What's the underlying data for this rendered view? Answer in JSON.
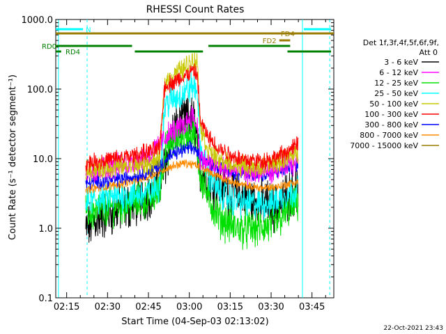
{
  "chart_data": {
    "type": "line",
    "title": "RHESSI Count Rates",
    "xlabel": "Start Time (04-Sep-03 02:13:02)",
    "ylabel": "Count Rate (s⁻¹ detector segment⁻¹)",
    "yscale": "log",
    "ylim": [
      0.1,
      1000
    ],
    "xlim_minutes": [
      -2,
      100
    ],
    "x_ticks": [
      {
        "label": "02:15",
        "minute": 2
      },
      {
        "label": "02:30",
        "minute": 17
      },
      {
        "label": "02:45",
        "minute": 32
      },
      {
        "label": "03:00",
        "minute": 47
      },
      {
        "label": "03:15",
        "minute": 62
      },
      {
        "label": "03:30",
        "minute": 77
      },
      {
        "label": "03:45",
        "minute": 92
      }
    ],
    "y_ticks": [
      {
        "label": "0.1",
        "value": 0.1
      },
      {
        "label": "1.0",
        "value": 1
      },
      {
        "label": "10.0",
        "value": 10
      },
      {
        "label": "100.0",
        "value": 100
      },
      {
        "label": "1000.0",
        "value": 1000
      }
    ],
    "legend_header": [
      "Det 1f,3f,4f,5f,6f,9f,",
      "Att 0"
    ],
    "timestamp": "22-Oct-2021 23:43",
    "series": [
      {
        "name": "3 - 6 keV",
        "color": "#000000",
        "noise": 0.28,
        "points": [
          [
            9,
            0.9
          ],
          [
            12,
            1.3
          ],
          [
            18,
            1.7
          ],
          [
            25,
            2.1
          ],
          [
            30,
            2.7
          ],
          [
            35,
            3.8
          ],
          [
            38,
            8
          ],
          [
            41,
            24
          ],
          [
            44,
            33
          ],
          [
            47,
            38
          ],
          [
            49,
            34
          ],
          [
            51,
            6.5
          ],
          [
            55,
            4.8
          ],
          [
            60,
            3.6
          ],
          [
            65,
            3.0
          ],
          [
            70,
            2.6
          ],
          [
            75,
            2.3
          ],
          [
            78,
            2.0
          ],
          [
            80,
            2.1
          ],
          [
            83,
            3.0
          ],
          [
            87,
            3.8
          ]
        ]
      },
      {
        "name": "6 - 12 keV",
        "color": "#ff00ff",
        "noise": 0.14,
        "points": [
          [
            9,
            6.5
          ],
          [
            14,
            7.0
          ],
          [
            20,
            7.8
          ],
          [
            26,
            8.8
          ],
          [
            31,
            10.5
          ],
          [
            35,
            14
          ],
          [
            39,
            22
          ],
          [
            43,
            27
          ],
          [
            46,
            33
          ],
          [
            48,
            44
          ],
          [
            50,
            28
          ],
          [
            51,
            10
          ],
          [
            55,
            8.3
          ],
          [
            60,
            7.2
          ],
          [
            65,
            6.6
          ],
          [
            70,
            6.4
          ],
          [
            75,
            6.4
          ],
          [
            80,
            7
          ],
          [
            84,
            8
          ],
          [
            87,
            9
          ]
        ]
      },
      {
        "name": "12 - 25 keV",
        "color": "#00e000",
        "noise": 0.22,
        "points": [
          [
            9,
            1.6
          ],
          [
            14,
            1.8
          ],
          [
            20,
            2.1
          ],
          [
            26,
            2.3
          ],
          [
            32,
            2.6
          ],
          [
            36,
            3.4
          ],
          [
            38,
            12
          ],
          [
            41,
            18
          ],
          [
            44,
            20
          ],
          [
            47,
            22
          ],
          [
            49,
            24
          ],
          [
            51,
            6
          ],
          [
            54,
            2.6
          ],
          [
            58,
            1.4
          ],
          [
            63,
            1.05
          ],
          [
            68,
            0.95
          ],
          [
            73,
            1.0
          ],
          [
            78,
            1.1
          ],
          [
            82,
            1.6
          ],
          [
            87,
            2.4
          ]
        ]
      },
      {
        "name": "25 - 50 keV",
        "color": "#00ffff",
        "noise": 0.18,
        "points": [
          [
            9,
            2.3
          ],
          [
            14,
            2.6
          ],
          [
            20,
            2.8
          ],
          [
            26,
            3.0
          ],
          [
            32,
            3.2
          ],
          [
            36,
            4
          ],
          [
            38,
            60
          ],
          [
            42,
            75
          ],
          [
            45,
            90
          ],
          [
            48,
            110
          ],
          [
            50,
            95
          ],
          [
            51,
            14
          ],
          [
            54,
            6
          ],
          [
            58,
            3.2
          ],
          [
            63,
            2.5
          ],
          [
            68,
            2.3
          ],
          [
            73,
            2.2
          ],
          [
            78,
            2.4
          ],
          [
            82,
            3.0
          ],
          [
            87,
            3.6
          ]
        ]
      },
      {
        "name": "50 - 100 keV",
        "color": "#c8c800",
        "noise": 0.12,
        "points": [
          [
            9,
            7
          ],
          [
            14,
            7.2
          ],
          [
            20,
            7.5
          ],
          [
            26,
            7.8
          ],
          [
            32,
            8.2
          ],
          [
            36,
            9.5
          ],
          [
            38,
            125
          ],
          [
            42,
            170
          ],
          [
            45,
            200
          ],
          [
            48,
            260
          ],
          [
            50,
            240
          ],
          [
            51,
            30
          ],
          [
            54,
            13
          ],
          [
            58,
            9.5
          ],
          [
            63,
            8.2
          ],
          [
            68,
            7.8
          ],
          [
            73,
            7.6
          ],
          [
            78,
            8.2
          ],
          [
            82,
            10
          ],
          [
            87,
            12
          ]
        ]
      },
      {
        "name": "100 - 300 keV",
        "color": "#ff0000",
        "noise": 0.1,
        "points": [
          [
            9,
            8.8
          ],
          [
            14,
            9.2
          ],
          [
            20,
            10
          ],
          [
            26,
            11
          ],
          [
            32,
            12.5
          ],
          [
            36,
            14
          ],
          [
            38,
            110
          ],
          [
            42,
            130
          ],
          [
            45,
            150
          ],
          [
            48,
            180
          ],
          [
            50,
            160
          ],
          [
            51,
            35
          ],
          [
            54,
            20
          ],
          [
            58,
            14
          ],
          [
            63,
            11
          ],
          [
            68,
            9.5
          ],
          [
            73,
            9.3
          ],
          [
            78,
            10
          ],
          [
            82,
            12
          ],
          [
            87,
            16
          ]
        ]
      },
      {
        "name": "300 - 800 keV",
        "color": "#0000ff",
        "noise": 0.08,
        "points": [
          [
            9,
            4.5
          ],
          [
            14,
            4.7
          ],
          [
            20,
            5
          ],
          [
            26,
            5.5
          ],
          [
            32,
            6.5
          ],
          [
            37,
            8.5
          ],
          [
            41,
            11.5
          ],
          [
            44,
            13
          ],
          [
            47,
            14
          ],
          [
            49,
            14
          ],
          [
            51,
            10.5
          ],
          [
            55,
            8.5
          ],
          [
            60,
            7
          ],
          [
            65,
            6
          ],
          [
            70,
            5.7
          ],
          [
            75,
            5.8
          ],
          [
            80,
            6.5
          ],
          [
            84,
            7.5
          ],
          [
            87,
            8.3
          ]
        ]
      },
      {
        "name": "800 - 7000 keV",
        "color": "#ff8c00",
        "noise": 0.05,
        "points": [
          [
            9,
            3.6
          ],
          [
            14,
            3.8
          ],
          [
            20,
            4.2
          ],
          [
            26,
            4.7
          ],
          [
            32,
            5.5
          ],
          [
            37,
            6.8
          ],
          [
            42,
            8.1
          ],
          [
            45,
            8.6
          ],
          [
            48,
            8.3
          ],
          [
            51,
            7.6
          ],
          [
            55,
            6.3
          ],
          [
            60,
            5.1
          ],
          [
            65,
            4.3
          ],
          [
            70,
            3.9
          ],
          [
            75,
            3.8
          ],
          [
            80,
            4.0
          ],
          [
            84,
            4.4
          ],
          [
            87,
            4.6
          ]
        ]
      },
      {
        "name": "7000 - 15000 keV",
        "color": "#9a7b00",
        "noise": 0,
        "points": []
      }
    ],
    "flag_bars": [
      {
        "label": "N",
        "color": "#00ffff",
        "segments": [
          [
            -2,
            8
          ]
        ],
        "level": 0
      },
      {
        "label": "N",
        "color": "#00ffff",
        "segments": [
          [
            89,
            99
          ]
        ],
        "level": 0,
        "hide_label": true
      },
      {
        "label": "FD4",
        "color": "#9a7b00",
        "segments": [
          [
            -2,
            100
          ]
        ],
        "level": 1
      },
      {
        "label": "FD2",
        "color": "#9a7b00",
        "segments": [
          [
            80,
            84
          ]
        ],
        "level": 2
      },
      {
        "label": "RD0",
        "color": "#008000",
        "segments": [
          [
            -2,
            26
          ]
        ],
        "level": 3
      },
      {
        "label": "RD0",
        "color": "#008000",
        "segments": [
          [
            54,
            84
          ]
        ],
        "level": 3,
        "hide_label": true
      },
      {
        "label": "RD4",
        "color": "#008000",
        "segments": [
          [
            -2,
            0
          ]
        ],
        "level": 4
      },
      {
        "label": "RD4",
        "color": "#008000",
        "segments": [
          [
            27,
            52
          ],
          [
            83,
            99
          ]
        ],
        "level": 4,
        "hide_label": true
      }
    ],
    "vertical_markers": [
      {
        "minute": -1,
        "style": "solid"
      },
      {
        "minute": 9.5,
        "style": "dashed"
      },
      {
        "minute": 88.5,
        "style": "solid"
      },
      {
        "minute": 98.5,
        "style": "dashed"
      }
    ]
  }
}
